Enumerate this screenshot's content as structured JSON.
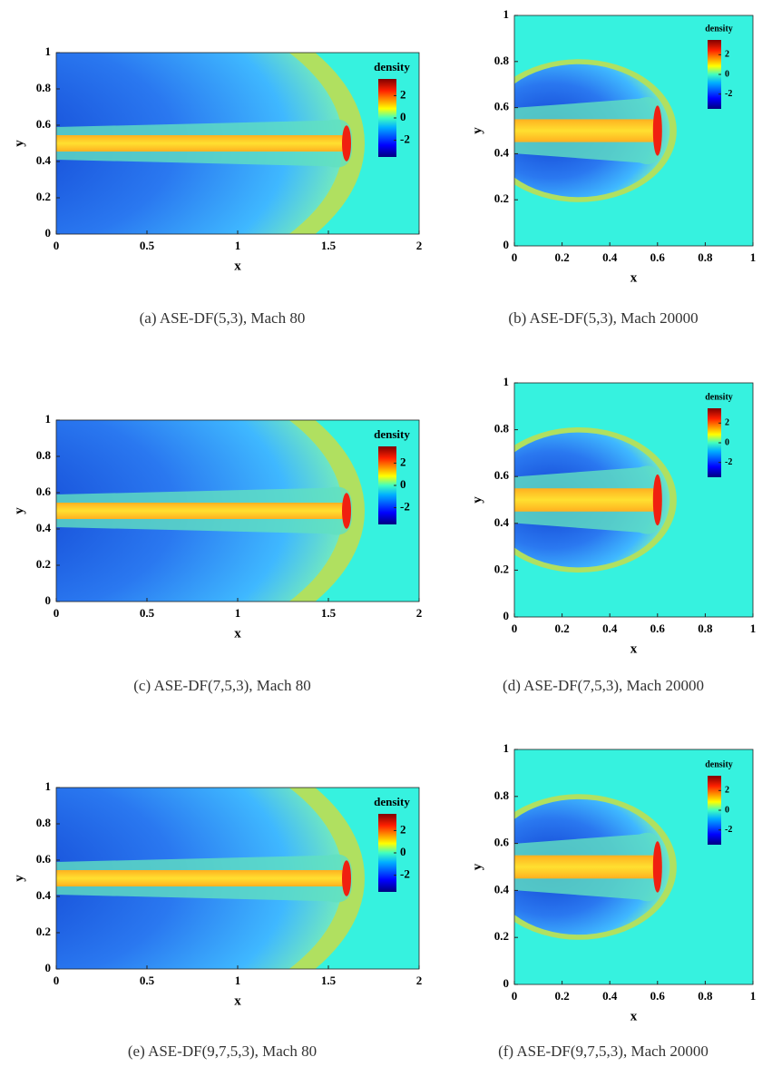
{
  "chart_data": [
    {
      "type": "heatmap",
      "caption": "(a) ASE-DF(5,3), Mach 80",
      "xlabel": "x",
      "ylabel": "y",
      "xlim": [
        0,
        2
      ],
      "ylim": [
        0,
        1
      ],
      "xticks": [
        0,
        0.5,
        1,
        1.5,
        2
      ],
      "yticks": [
        0,
        0.2,
        0.4,
        0.6,
        0.8,
        1
      ],
      "colorbar_label": "density",
      "clim": [
        -3.5,
        3.5
      ],
      "cticks": [
        2,
        0,
        -2
      ]
    },
    {
      "type": "heatmap",
      "caption": "(b) ASE-DF(5,3), Mach 20000",
      "xlabel": "x",
      "ylabel": "y",
      "xlim": [
        0,
        1
      ],
      "ylim": [
        0,
        1
      ],
      "xticks": [
        0,
        0.2,
        0.4,
        0.6,
        0.8,
        1
      ],
      "yticks": [
        0,
        0.2,
        0.4,
        0.6,
        0.8,
        1
      ],
      "colorbar_label": "density",
      "clim": [
        -3.5,
        3.5
      ],
      "cticks": [
        2,
        0,
        -2
      ]
    },
    {
      "type": "heatmap",
      "caption": "(c) ASE-DF(7,5,3), Mach 80",
      "xlabel": "x",
      "ylabel": "y",
      "xlim": [
        0,
        2
      ],
      "ylim": [
        0,
        1
      ],
      "xticks": [
        0,
        0.5,
        1,
        1.5,
        2
      ],
      "yticks": [
        0,
        0.2,
        0.4,
        0.6,
        0.8,
        1
      ],
      "colorbar_label": "density",
      "clim": [
        -3.5,
        3.5
      ],
      "cticks": [
        2,
        0,
        -2
      ]
    },
    {
      "type": "heatmap",
      "caption": "(d) ASE-DF(7,5,3), Mach 20000",
      "xlabel": "x",
      "ylabel": "y",
      "xlim": [
        0,
        1
      ],
      "ylim": [
        0,
        1
      ],
      "xticks": [
        0,
        0.2,
        0.4,
        0.6,
        0.8,
        1
      ],
      "yticks": [
        0,
        0.2,
        0.4,
        0.6,
        0.8,
        1
      ],
      "colorbar_label": "density",
      "clim": [
        -3.5,
        3.5
      ],
      "cticks": [
        2,
        0,
        -2
      ]
    },
    {
      "type": "heatmap",
      "caption": "(e) ASE-DF(9,7,5,3), Mach 80",
      "xlabel": "x",
      "ylabel": "y",
      "xlim": [
        0,
        2
      ],
      "ylim": [
        0,
        1
      ],
      "xticks": [
        0,
        0.5,
        1,
        1.5,
        2
      ],
      "yticks": [
        0,
        0.2,
        0.4,
        0.6,
        0.8,
        1
      ],
      "colorbar_label": "density",
      "clim": [
        -3.5,
        3.5
      ],
      "cticks": [
        2,
        0,
        -2
      ]
    },
    {
      "type": "heatmap",
      "caption": "(f) ASE-DF(9,7,5,3), Mach 20000",
      "xlabel": "x",
      "ylabel": "y",
      "xlim": [
        0,
        1
      ],
      "ylim": [
        0,
        1
      ],
      "xticks": [
        0,
        0.2,
        0.4,
        0.6,
        0.8,
        1
      ],
      "yticks": [
        0,
        0.2,
        0.4,
        0.6,
        0.8,
        1
      ],
      "colorbar_label": "density",
      "clim": [
        -3.5,
        3.5
      ],
      "cticks": [
        2,
        0,
        -2
      ]
    }
  ]
}
